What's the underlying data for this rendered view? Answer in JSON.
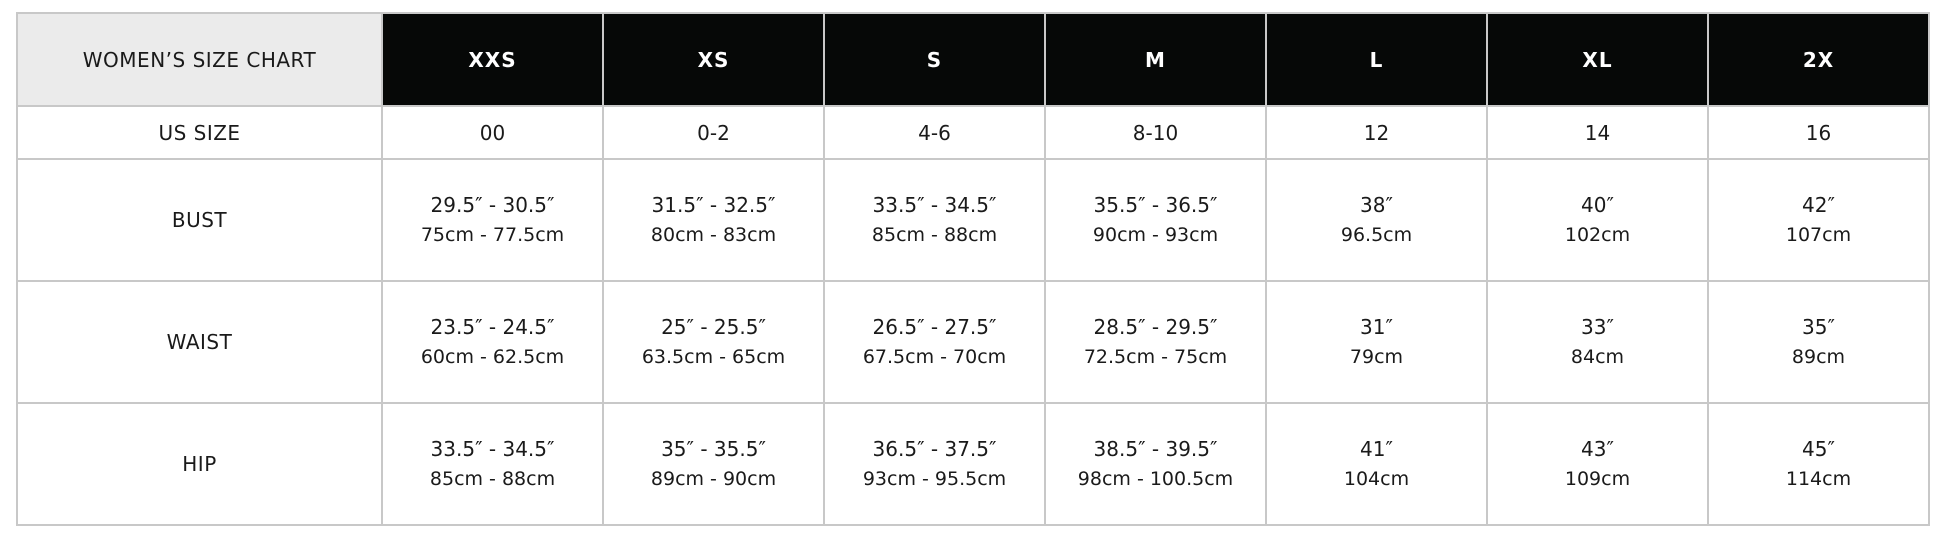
{
  "title": "WOMEN’S SIZE CHART",
  "sizes": [
    "XXS",
    "XS",
    "S",
    "M",
    "L",
    "XL",
    "2X"
  ],
  "colors": {
    "header_bg": "#060807",
    "title_bg": "#ebebeb",
    "border": "#c8c8c8"
  },
  "rows": {
    "us": {
      "label": "US SIZE",
      "values": [
        "00",
        "0-2",
        "4-6",
        "8-10",
        "12",
        "14",
        "16"
      ]
    },
    "bust": {
      "label": "BUST",
      "in": [
        "29.5″ - 30.5″",
        "31.5″ - 32.5″",
        "33.5″ - 34.5″",
        "35.5″ - 36.5″",
        "38″",
        "40″",
        "42″"
      ],
      "cm": [
        "75cm - 77.5cm",
        "80cm - 83cm",
        "85cm - 88cm",
        "90cm - 93cm",
        "96.5cm",
        "102cm",
        "107cm"
      ]
    },
    "waist": {
      "label": "WAIST",
      "in": [
        "23.5″ - 24.5″",
        "25″ - 25.5″",
        "26.5″ - 27.5″",
        "28.5″ - 29.5″",
        "31″",
        "33″",
        "35″"
      ],
      "cm": [
        "60cm - 62.5cm",
        "63.5cm - 65cm",
        "67.5cm - 70cm",
        "72.5cm - 75cm",
        "79cm",
        "84cm",
        "89cm"
      ]
    },
    "hip": {
      "label": "HIP",
      "in": [
        "33.5″ - 34.5″",
        "35″ - 35.5″",
        "36.5″ - 37.5″",
        "38.5″ - 39.5″",
        "41″",
        "43″",
        "45″"
      ],
      "cm": [
        "85cm - 88cm",
        "89cm - 90cm",
        "93cm - 95.5cm",
        "98cm - 100.5cm",
        "104cm",
        "109cm",
        "114cm"
      ]
    }
  }
}
